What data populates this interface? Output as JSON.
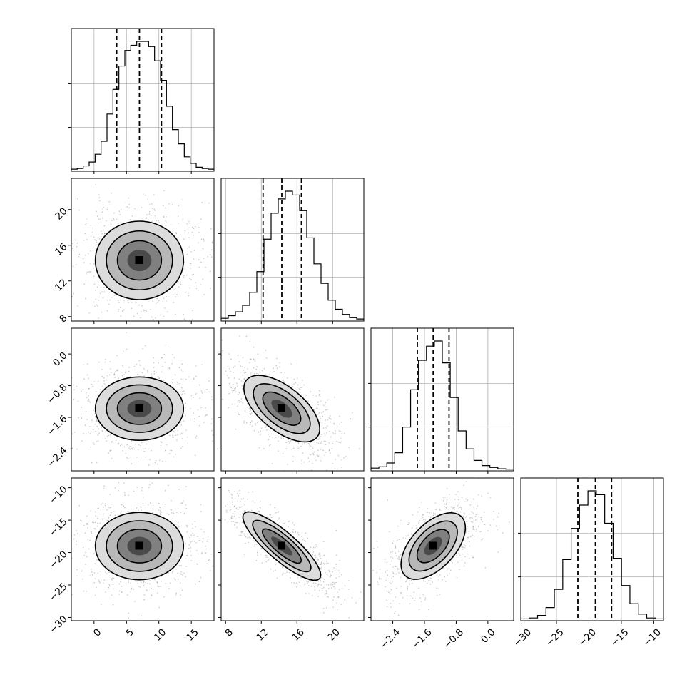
{
  "chart_data": {
    "type": "corner",
    "title": "",
    "grid": true,
    "parameters": [
      {
        "ticks": [
          0,
          5,
          10,
          15
        ],
        "tick_labels": [
          "0",
          "5",
          "10",
          "15"
        ],
        "range": [
          -3.5,
          18.5
        ],
        "quantiles": [
          3.5,
          7.0,
          10.4
        ],
        "mean": 7.0,
        "std": 3.4
      },
      {
        "ticks": [
          8,
          12,
          16,
          20
        ],
        "tick_labels": [
          "8",
          "12",
          "16",
          "20"
        ],
        "range": [
          7.5,
          23.5
        ],
        "quantiles": [
          12.2,
          14.3,
          16.5
        ],
        "mean": 14.3,
        "std": 2.2
      },
      {
        "ticks": [
          -2.4,
          -1.6,
          -0.8,
          0.0
        ],
        "tick_labels": [
          "−2.4",
          "−1.6",
          "−0.8",
          "0.0"
        ],
        "range": [
          -2.95,
          0.65
        ],
        "quantiles": [
          -1.78,
          -1.38,
          -0.98
        ],
        "mean": -1.38,
        "std": 0.4
      },
      {
        "ticks": [
          -30,
          -25,
          -20,
          -15,
          -10
        ],
        "tick_labels": [
          "−30",
          "−25",
          "−20",
          "−15",
          "−10"
        ],
        "range": [
          -30.5,
          -8.5
        ],
        "quantiles": [
          -21.7,
          -19.0,
          -16.5
        ],
        "mean": -19.0,
        "std": 2.6
      }
    ],
    "correlations": [
      [
        1,
        0,
        0,
        0
      ],
      [
        0,
        1,
        -0.62,
        -0.85
      ],
      [
        0,
        -0.62,
        1,
        0.55
      ],
      [
        0,
        -0.85,
        0.55,
        1
      ]
    ],
    "histograms": [
      [
        0.5,
        1,
        3,
        6,
        12,
        22,
        43,
        62,
        80,
        92,
        96,
        99,
        99,
        95,
        84,
        69,
        49,
        31,
        20,
        10,
        5,
        2,
        1,
        0.5
      ],
      [
        1,
        3,
        6,
        11,
        21,
        37,
        62,
        82,
        93,
        99,
        96,
        84,
        63,
        43,
        28,
        15,
        8,
        4,
        1.5,
        0.5
      ],
      [
        1,
        2,
        5,
        13,
        33,
        62,
        85,
        96,
        100,
        83,
        56,
        30,
        16,
        7,
        3,
        1.5,
        0.5,
        0.2
      ],
      [
        0.3,
        1,
        3,
        9,
        23,
        46,
        70,
        88,
        99,
        96,
        74,
        47,
        26,
        12,
        4,
        1,
        0.3
      ]
    ]
  }
}
